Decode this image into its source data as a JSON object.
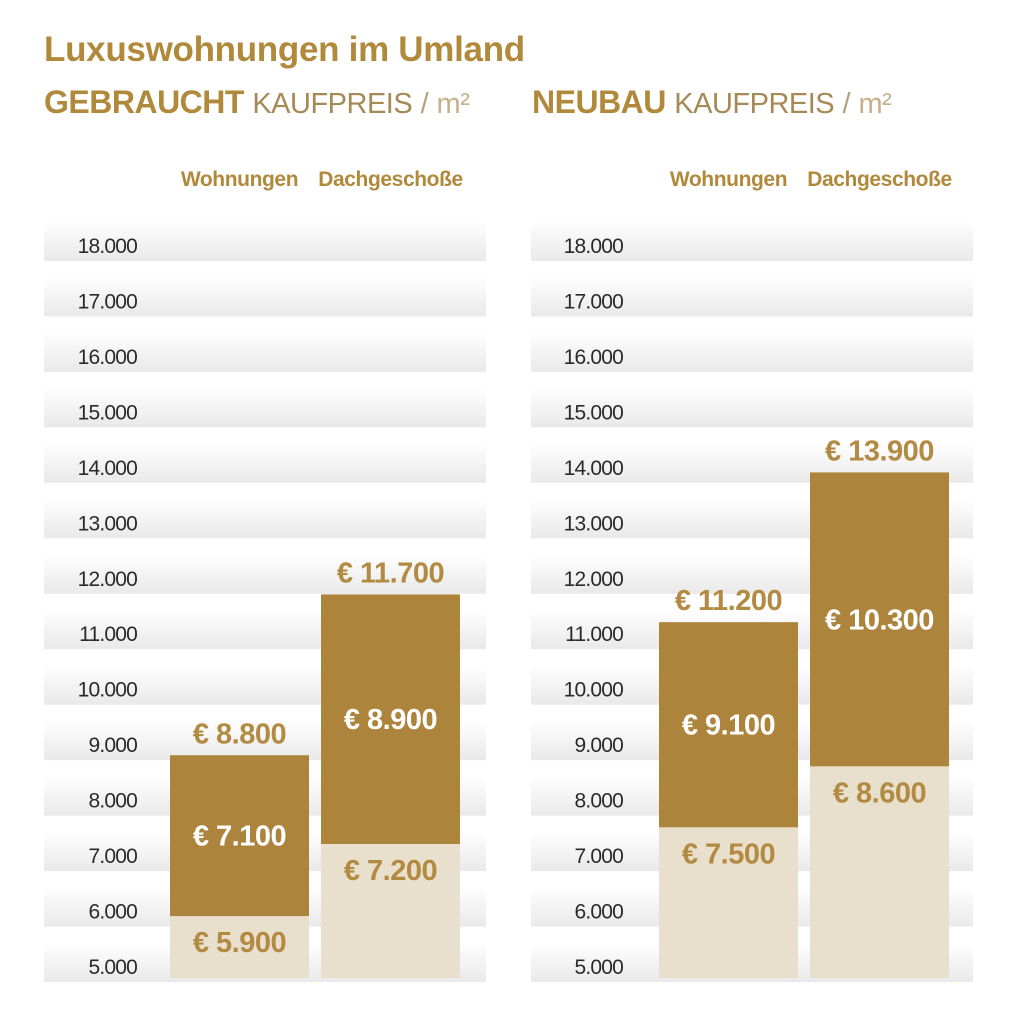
{
  "title": "Luxuswohnungen im Umland",
  "panels": [
    {
      "title_bold": "GEBRAUCHT",
      "title_rest": "KAUFPREIS",
      "title_sep": "/",
      "title_unit": "m²"
    },
    {
      "title_bold": "NEUBAU",
      "title_rest": "KAUFPREIS",
      "title_sep": "/",
      "title_unit": "m²"
    }
  ],
  "colors": {
    "accent": "#b0893a",
    "bar_dark": "#ad843b",
    "bar_light": "#e9dfcd",
    "label_on_light": "#b38a42",
    "label_on_dark": "#ffffff",
    "axis_text": "#2a2a2a"
  },
  "chart_data": [
    {
      "type": "bar",
      "title": "GEBRAUCHT KAUFPREIS / m²",
      "categories": [
        "Wohnungen",
        "Dachgeschoße"
      ],
      "ylim": [
        5000,
        18000
      ],
      "yticks": [
        18000,
        17000,
        16000,
        15000,
        14000,
        13000,
        12000,
        11000,
        10000,
        9000,
        8000,
        7000,
        6000,
        5000
      ],
      "ytick_labels": [
        "18.000",
        "17.000",
        "16.000",
        "15.000",
        "14.000",
        "13.000",
        "12.000",
        "11.000",
        "10.000",
        "9.000",
        "8.000",
        "7.000",
        "6.000",
        "5.000"
      ],
      "bars": [
        {
          "low": 5900,
          "mid": 7100,
          "high": 8800,
          "low_label": "€ 5.900",
          "mid_label": "€ 7.100",
          "high_label": "€ 8.800"
        },
        {
          "low": 7200,
          "mid": 8900,
          "high": 11700,
          "low_label": "€ 7.200",
          "mid_label": "€ 8.900",
          "high_label": "€ 11.700"
        }
      ]
    },
    {
      "type": "bar",
      "title": "NEUBAU KAUFPREIS / m²",
      "categories": [
        "Wohnungen",
        "Dachgeschoße"
      ],
      "ylim": [
        5000,
        18000
      ],
      "yticks": [
        18000,
        17000,
        16000,
        15000,
        14000,
        13000,
        12000,
        11000,
        10000,
        9000,
        8000,
        7000,
        6000,
        5000
      ],
      "ytick_labels": [
        "18.000",
        "17.000",
        "16.000",
        "15.000",
        "14.000",
        "13.000",
        "12.000",
        "11.000",
        "10.000",
        "9.000",
        "8.000",
        "7.000",
        "6.000",
        "5.000"
      ],
      "bars": [
        {
          "low": 7500,
          "mid": 9100,
          "high": 11200,
          "low_label": "€ 7.500",
          "mid_label": "€ 9.100",
          "high_label": "€ 11.200"
        },
        {
          "low": 8600,
          "mid": 10300,
          "high": 13900,
          "low_label": "€ 8.600",
          "mid_label": "€ 10.300",
          "high_label": "€ 13.900"
        }
      ]
    }
  ]
}
